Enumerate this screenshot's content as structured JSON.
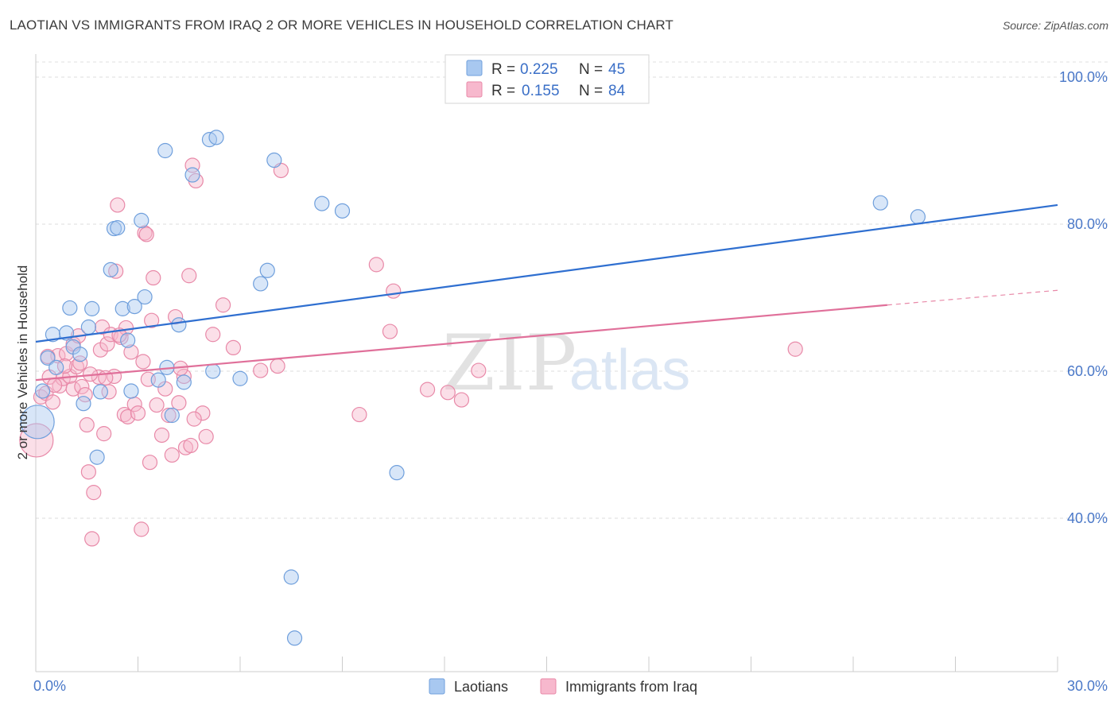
{
  "title": "LAOTIAN VS IMMIGRANTS FROM IRAQ 2 OR MORE VEHICLES IN HOUSEHOLD CORRELATION CHART",
  "source": "Source: ZipAtlas.com",
  "watermark": {
    "zip": "ZIP",
    "atlas": "atlas"
  },
  "legend": {
    "r_label": "R =",
    "n_label": "N =",
    "series": [
      {
        "name": "Laotians",
        "r": "0.225",
        "n": "45",
        "color": "#a8c8f0",
        "stroke": "#6f9fdc"
      },
      {
        "name": "Immigrants from Iraq",
        "r": "0.155",
        "n": "84",
        "color": "#f7b8cd",
        "stroke": "#e889a8"
      }
    ]
  },
  "chart_data": {
    "type": "scatter",
    "title": "LAOTIAN VS IMMIGRANTS FROM IRAQ 2 OR MORE VEHICLES IN HOUSEHOLD CORRELATION CHART",
    "xlabel": "",
    "ylabel": "2 or more Vehicles in Household",
    "xlim": [
      0,
      30
    ],
    "ylim": [
      22,
      103
    ],
    "x_ticks": [
      {
        "value": 0,
        "label": "0.0%"
      },
      {
        "value": 30,
        "label": "30.0%"
      }
    ],
    "y_ticks": [
      {
        "value": 100,
        "label": "100.0%"
      },
      {
        "value": 80,
        "label": "80.0%"
      },
      {
        "value": 60,
        "label": "60.0%"
      },
      {
        "value": 40,
        "label": "40.0%"
      }
    ],
    "series": [
      {
        "name": "Laotians",
        "trend": {
          "x0": 0,
          "y0": 64.0,
          "x1": 30,
          "y1": 82.6
        },
        "points": [
          {
            "x": 0.05,
            "y": 53.1,
            "big": true
          },
          {
            "x": 0.2,
            "y": 57.3
          },
          {
            "x": 0.35,
            "y": 61.8
          },
          {
            "x": 0.5,
            "y": 65.0
          },
          {
            "x": 0.6,
            "y": 60.5
          },
          {
            "x": 0.9,
            "y": 65.2
          },
          {
            "x": 1.0,
            "y": 68.6
          },
          {
            "x": 1.1,
            "y": 63.3
          },
          {
            "x": 1.3,
            "y": 62.3
          },
          {
            "x": 1.4,
            "y": 55.6
          },
          {
            "x": 1.55,
            "y": 66.0
          },
          {
            "x": 1.65,
            "y": 68.5
          },
          {
            "x": 1.8,
            "y": 48.3
          },
          {
            "x": 1.9,
            "y": 57.2
          },
          {
            "x": 2.2,
            "y": 73.8
          },
          {
            "x": 2.3,
            "y": 79.4
          },
          {
            "x": 2.4,
            "y": 79.5
          },
          {
            "x": 2.55,
            "y": 68.5
          },
          {
            "x": 2.7,
            "y": 64.2
          },
          {
            "x": 2.8,
            "y": 57.3
          },
          {
            "x": 2.9,
            "y": 68.8
          },
          {
            "x": 3.1,
            "y": 80.5
          },
          {
            "x": 3.2,
            "y": 70.1
          },
          {
            "x": 3.6,
            "y": 58.8
          },
          {
            "x": 3.8,
            "y": 90.0
          },
          {
            "x": 3.85,
            "y": 60.5
          },
          {
            "x": 4.0,
            "y": 54.0
          },
          {
            "x": 4.2,
            "y": 66.3
          },
          {
            "x": 4.35,
            "y": 58.5
          },
          {
            "x": 4.6,
            "y": 86.7
          },
          {
            "x": 5.1,
            "y": 91.5
          },
          {
            "x": 5.2,
            "y": 60.0
          },
          {
            "x": 5.3,
            "y": 91.8
          },
          {
            "x": 6.0,
            "y": 59.0
          },
          {
            "x": 6.6,
            "y": 71.9
          },
          {
            "x": 6.8,
            "y": 73.7
          },
          {
            "x": 7.0,
            "y": 88.7
          },
          {
            "x": 7.5,
            "y": 32.0
          },
          {
            "x": 7.6,
            "y": 23.7
          },
          {
            "x": 8.4,
            "y": 82.8
          },
          {
            "x": 9.0,
            "y": 81.8
          },
          {
            "x": 10.6,
            "y": 46.2
          },
          {
            "x": 24.8,
            "y": 82.9
          },
          {
            "x": 25.9,
            "y": 81.0
          }
        ]
      },
      {
        "name": "Immigrants from Iraq",
        "trend": {
          "x0": 0,
          "y0": 58.8,
          "x1": 25.0,
          "y1": 69.0
        },
        "trend_dashed": {
          "x0": 25.0,
          "y0": 69.0,
          "x1": 30,
          "y1": 71.0
        },
        "points": [
          {
            "x": 0.02,
            "y": 50.6,
            "big": true
          },
          {
            "x": 0.15,
            "y": 56.5
          },
          {
            "x": 0.3,
            "y": 57.0
          },
          {
            "x": 0.4,
            "y": 59.2
          },
          {
            "x": 0.5,
            "y": 55.8
          },
          {
            "x": 0.65,
            "y": 62.1
          },
          {
            "x": 0.7,
            "y": 58.0
          },
          {
            "x": 0.8,
            "y": 59.0
          },
          {
            "x": 0.9,
            "y": 62.4
          },
          {
            "x": 1.0,
            "y": 59.3
          },
          {
            "x": 1.1,
            "y": 57.6
          },
          {
            "x": 1.2,
            "y": 60.6
          },
          {
            "x": 1.3,
            "y": 61.1
          },
          {
            "x": 1.35,
            "y": 57.9
          },
          {
            "x": 1.5,
            "y": 52.7
          },
          {
            "x": 1.55,
            "y": 46.3
          },
          {
            "x": 1.65,
            "y": 37.2
          },
          {
            "x": 1.7,
            "y": 43.5
          },
          {
            "x": 1.85,
            "y": 59.2
          },
          {
            "x": 1.9,
            "y": 62.9
          },
          {
            "x": 1.95,
            "y": 66.0
          },
          {
            "x": 2.0,
            "y": 51.5
          },
          {
            "x": 2.1,
            "y": 63.7
          },
          {
            "x": 2.2,
            "y": 65.0
          },
          {
            "x": 2.3,
            "y": 59.3
          },
          {
            "x": 2.35,
            "y": 73.6
          },
          {
            "x": 2.4,
            "y": 82.6
          },
          {
            "x": 2.5,
            "y": 64.6
          },
          {
            "x": 2.6,
            "y": 54.1
          },
          {
            "x": 2.7,
            "y": 53.8
          },
          {
            "x": 2.8,
            "y": 62.6
          },
          {
            "x": 2.9,
            "y": 55.5
          },
          {
            "x": 3.0,
            "y": 54.3
          },
          {
            "x": 3.1,
            "y": 38.5
          },
          {
            "x": 3.2,
            "y": 78.8
          },
          {
            "x": 3.3,
            "y": 58.9
          },
          {
            "x": 3.35,
            "y": 47.6
          },
          {
            "x": 3.4,
            "y": 66.9
          },
          {
            "x": 3.45,
            "y": 72.7
          },
          {
            "x": 3.55,
            "y": 55.4
          },
          {
            "x": 3.7,
            "y": 51.3
          },
          {
            "x": 3.9,
            "y": 54.0
          },
          {
            "x": 4.0,
            "y": 48.6
          },
          {
            "x": 4.1,
            "y": 67.4
          },
          {
            "x": 4.2,
            "y": 55.7
          },
          {
            "x": 4.35,
            "y": 59.3
          },
          {
            "x": 4.4,
            "y": 49.6
          },
          {
            "x": 4.5,
            "y": 73.0
          },
          {
            "x": 4.6,
            "y": 88.0
          },
          {
            "x": 4.7,
            "y": 85.9
          },
          {
            "x": 4.9,
            "y": 54.3
          },
          {
            "x": 5.0,
            "y": 51.1
          },
          {
            "x": 5.2,
            "y": 65.0
          },
          {
            "x": 5.5,
            "y": 69.0
          },
          {
            "x": 5.8,
            "y": 63.2
          },
          {
            "x": 6.6,
            "y": 60.1
          },
          {
            "x": 7.1,
            "y": 60.7
          },
          {
            "x": 7.2,
            "y": 87.3
          },
          {
            "x": 9.5,
            "y": 54.1
          },
          {
            "x": 10.0,
            "y": 74.5
          },
          {
            "x": 10.4,
            "y": 65.4
          },
          {
            "x": 10.5,
            "y": 70.9
          },
          {
            "x": 11.5,
            "y": 57.5
          },
          {
            "x": 12.1,
            "y": 57.1
          },
          {
            "x": 12.5,
            "y": 56.1
          },
          {
            "x": 13.0,
            "y": 60.1
          },
          {
            "x": 22.3,
            "y": 63.0
          },
          {
            "x": 1.1,
            "y": 63.7
          },
          {
            "x": 1.6,
            "y": 59.6
          },
          {
            "x": 2.05,
            "y": 59.1
          },
          {
            "x": 3.25,
            "y": 78.6
          },
          {
            "x": 4.65,
            "y": 53.5
          },
          {
            "x": 0.85,
            "y": 60.7
          },
          {
            "x": 2.65,
            "y": 65.9
          },
          {
            "x": 1.25,
            "y": 64.8
          },
          {
            "x": 3.8,
            "y": 57.6
          },
          {
            "x": 4.55,
            "y": 49.9
          },
          {
            "x": 0.55,
            "y": 58.1
          },
          {
            "x": 2.15,
            "y": 57.2
          },
          {
            "x": 3.15,
            "y": 61.3
          },
          {
            "x": 0.35,
            "y": 62.0
          },
          {
            "x": 1.45,
            "y": 56.8
          },
          {
            "x": 2.45,
            "y": 64.9
          },
          {
            "x": 4.25,
            "y": 60.4
          }
        ]
      }
    ]
  }
}
